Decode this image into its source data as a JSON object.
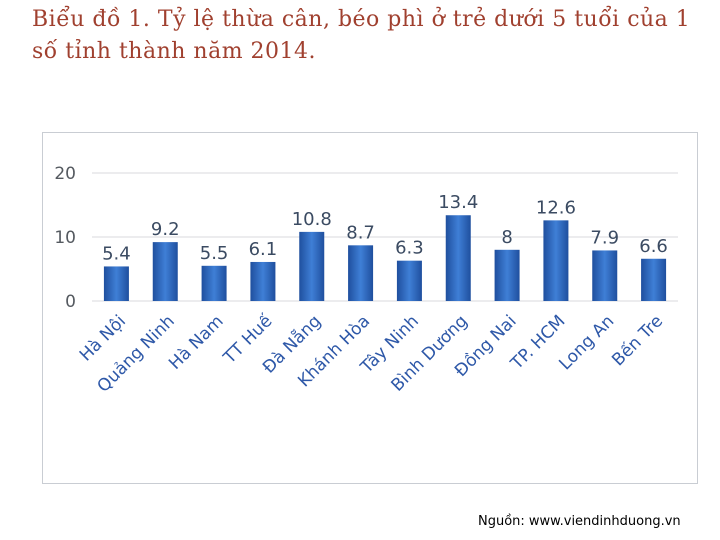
{
  "title": "Biểu đồ 1. Tỷ lệ thừa cân, béo phì ở trẻ dưới 5 tuổi của 1 số tỉnh thành năm 2014.",
  "source": "Nguồn: www.viendinhduong.vn",
  "chart_data": {
    "type": "bar",
    "title": "",
    "xlabel": "",
    "ylabel": "",
    "ylim": [
      0,
      20
    ],
    "yticks": [
      0,
      10,
      20
    ],
    "grid": true,
    "legend": "none",
    "bar_color": "#2e64b8",
    "categories": [
      "Hà Nội",
      "Quảng Ninh",
      "Hà Nam",
      "TT Huế",
      "Đà Nẵng",
      "Khánh Hòa",
      "Tây Ninh",
      "Bình Dương",
      "Đồng Nai",
      "TP. HCM",
      "Long An",
      "Bến Tre"
    ],
    "values": [
      5.4,
      9.2,
      5.5,
      6.1,
      10.8,
      8.7,
      6.3,
      13.4,
      8,
      12.6,
      7.9,
      6.6
    ]
  }
}
